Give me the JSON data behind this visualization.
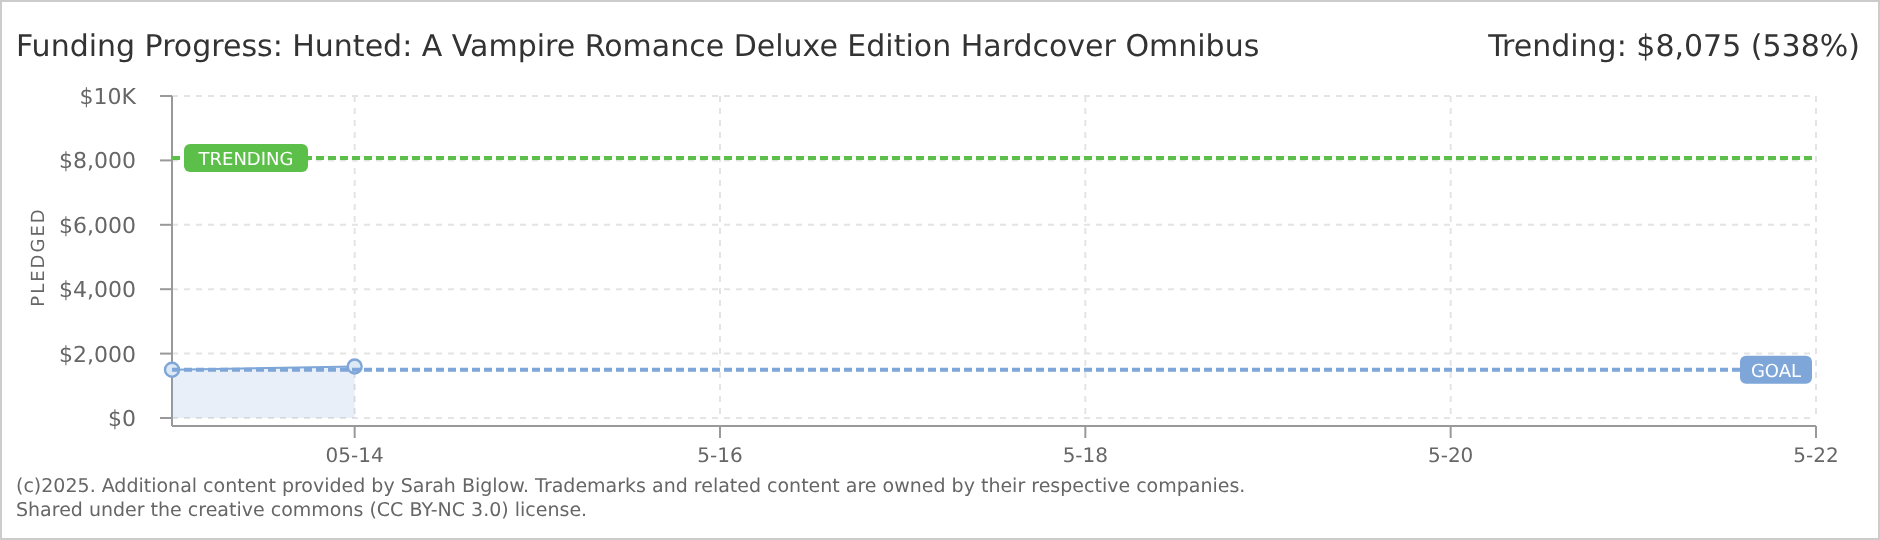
{
  "chart_data": {
    "type": "area",
    "title": "Funding Progress: Hunted: A Vampire Romance Deluxe Edition Hardcover Omnibus",
    "ylabel": "PLEDGED",
    "annotations": [
      "Trending: $8,075 (538%)",
      "(c)2025. Additional content provided by Sarah Biglow. Trademarks and related content are owned by their respective companies.",
      "Shared under the creative commons (CC BY-NC 3.0) license."
    ],
    "x": [
      "2025-05-13",
      "2025-05-14"
    ],
    "series": [
      {
        "color": "#7ea6d8",
        "values": [
          1500,
          1600
        ]
      }
    ],
    "xlim": [
      "2025-05-13",
      "2025-05-22"
    ],
    "xticks": [
      {
        "value": "2025-05-14",
        "label": "05-14"
      },
      {
        "value": "2025-05-16",
        "label": "5-16"
      },
      {
        "value": "2025-05-18",
        "label": "5-18"
      },
      {
        "value": "2025-05-20",
        "label": "5-20"
      },
      {
        "value": "2025-05-22",
        "label": "5-22"
      }
    ],
    "ylim": [
      0,
      10000
    ],
    "yticks": [
      {
        "value": 0,
        "label": "$0"
      },
      {
        "value": 2000,
        "label": "$2,000"
      },
      {
        "value": 4000,
        "label": "$4,000"
      },
      {
        "value": 6000,
        "label": "$6,000"
      },
      {
        "value": 8000,
        "label": "$8,000"
      },
      {
        "value": 10000,
        "label": "$10K"
      }
    ],
    "ref_lines": [
      {
        "axis": "y",
        "value": 8075,
        "label": "TRENDING",
        "color": "#5cbf4a",
        "line_style": "dashed"
      },
      {
        "axis": "y",
        "value": 1500,
        "label": "GOAL",
        "color": "#7ea6d8",
        "line_style": "dashed"
      }
    ],
    "grid": true,
    "marker": "circle"
  }
}
